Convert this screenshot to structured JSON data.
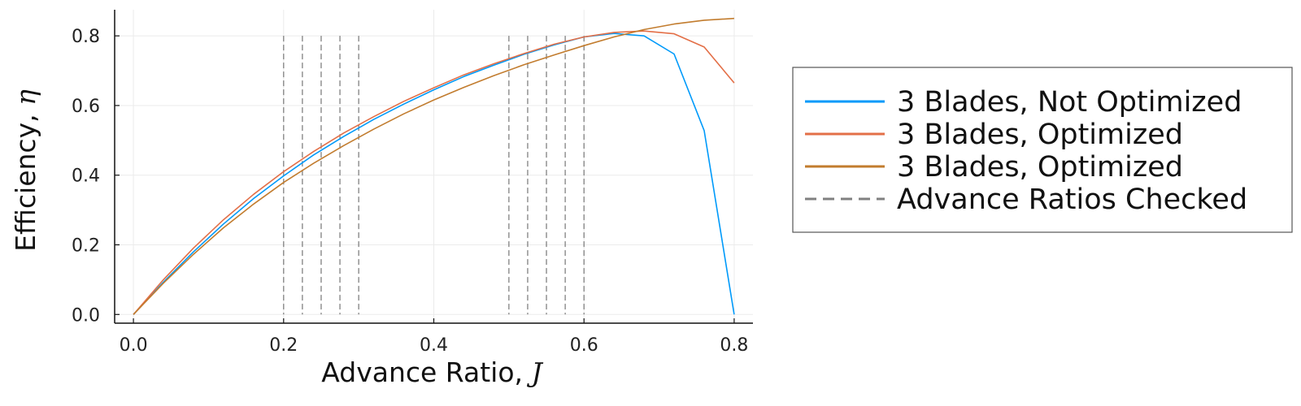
{
  "chart_data": {
    "type": "line",
    "title": "",
    "xlabel": "Advance Ratio, ",
    "xlabel_symbol": "J",
    "ylabel": "Efficiency, ",
    "ylabel_symbol": "η",
    "xlim": [
      -0.025,
      0.825
    ],
    "ylim": [
      -0.025,
      0.875
    ],
    "xticks": [
      0.0,
      0.2,
      0.4,
      0.6,
      0.8
    ],
    "xtick_labels": [
      "0.0",
      "0.2",
      "0.4",
      "0.6",
      "0.8"
    ],
    "yticks": [
      0.0,
      0.2,
      0.4,
      0.6,
      0.8
    ],
    "ytick_labels": [
      "0.0",
      "0.2",
      "0.4",
      "0.6",
      "0.8"
    ],
    "grid": true,
    "legend_position": "outside-right",
    "series": [
      {
        "name": "3 Blades, Not Optimized",
        "color": "#009AFA",
        "x": [
          0.0,
          0.04,
          0.08,
          0.12,
          0.16,
          0.2,
          0.24,
          0.28,
          0.32,
          0.36,
          0.4,
          0.44,
          0.48,
          0.52,
          0.56,
          0.6,
          0.64,
          0.68,
          0.72,
          0.76,
          0.8
        ],
        "y": [
          0.0,
          0.093,
          0.18,
          0.26,
          0.333,
          0.398,
          0.458,
          0.511,
          0.56,
          0.604,
          0.645,
          0.683,
          0.716,
          0.747,
          0.774,
          0.797,
          0.807,
          0.8,
          0.748,
          0.528,
          0.0
        ]
      },
      {
        "name": "3 Blades, Optimized",
        "color": "#E36F47",
        "x": [
          0.0,
          0.04,
          0.08,
          0.12,
          0.16,
          0.2,
          0.24,
          0.28,
          0.32,
          0.36,
          0.4,
          0.44,
          0.48,
          0.52,
          0.56,
          0.6,
          0.64,
          0.68,
          0.72,
          0.76,
          0.8
        ],
        "y": [
          0.0,
          0.1,
          0.191,
          0.272,
          0.345,
          0.41,
          0.468,
          0.521,
          0.568,
          0.612,
          0.651,
          0.688,
          0.72,
          0.749,
          0.776,
          0.797,
          0.81,
          0.814,
          0.806,
          0.768,
          0.665
        ]
      },
      {
        "name": "3 Blades, Optimized",
        "color": "#C27C2E",
        "x": [
          0.0,
          0.04,
          0.08,
          0.12,
          0.16,
          0.2,
          0.24,
          0.28,
          0.32,
          0.36,
          0.4,
          0.44,
          0.48,
          0.52,
          0.56,
          0.6,
          0.64,
          0.68,
          0.72,
          0.76,
          0.8
        ],
        "y": [
          0.0,
          0.09,
          0.173,
          0.249,
          0.317,
          0.379,
          0.434,
          0.485,
          0.532,
          0.576,
          0.616,
          0.652,
          0.686,
          0.717,
          0.745,
          0.772,
          0.797,
          0.818,
          0.834,
          0.845,
          0.85
        ]
      }
    ],
    "vlines": {
      "name": "Advance Ratios Checked",
      "color": "#808080",
      "x": [
        0.2,
        0.225,
        0.25,
        0.275,
        0.3,
        0.5,
        0.525,
        0.55,
        0.575,
        0.6
      ],
      "y_top": 0.8,
      "y_bottom": 0.0
    }
  }
}
